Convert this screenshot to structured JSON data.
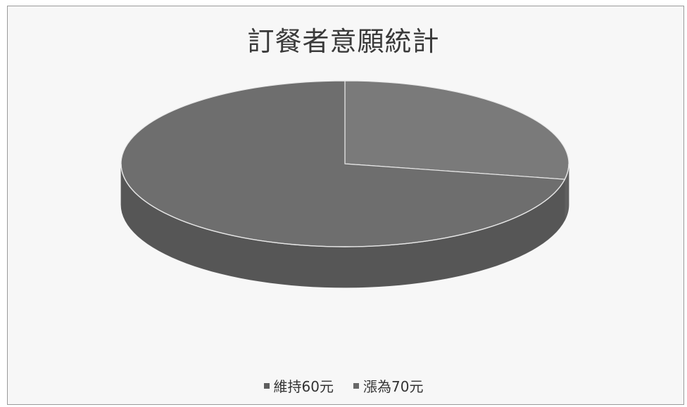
{
  "chart_data": {
    "type": "pie",
    "style": "3d",
    "title": "訂餐者意願統計",
    "categories": [
      "維持60元",
      "漲為70元"
    ],
    "values": [
      72,
      28
    ],
    "legend_position": "bottom",
    "colors": {
      "維持60元": "#6e6e6e",
      "漲為70元": "#7a7a7a"
    }
  }
}
